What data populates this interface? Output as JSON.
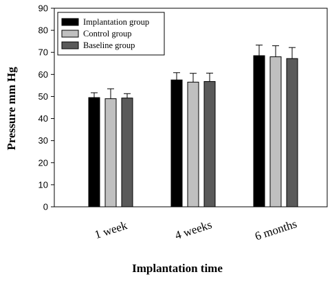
{
  "chart_data": {
    "type": "bar",
    "title": "",
    "xlabel": "Implantation time",
    "ylabel": "Pressure mm Hg",
    "categories": [
      "1 week",
      "4 weeks",
      "6 months"
    ],
    "ylim": [
      0,
      90
    ],
    "yticks": [
      0,
      10,
      20,
      30,
      40,
      50,
      60,
      70,
      80,
      90
    ],
    "grid": false,
    "legend_position": "top-left",
    "series": [
      {
        "name": "Implantation group",
        "color": "#000000",
        "values": [
          49.5,
          57.5,
          68.5
        ],
        "errors": [
          2.2,
          3.3,
          4.8
        ]
      },
      {
        "name": "Control group",
        "color": "#c0c0c0",
        "values": [
          49.0,
          56.5,
          68.0
        ],
        "errors": [
          4.5,
          4.0,
          5.0
        ]
      },
      {
        "name": "Baseline group",
        "color": "#5a5a5a",
        "values": [
          49.3,
          56.8,
          67.2
        ],
        "errors": [
          2.0,
          3.8,
          5.0
        ]
      }
    ]
  }
}
